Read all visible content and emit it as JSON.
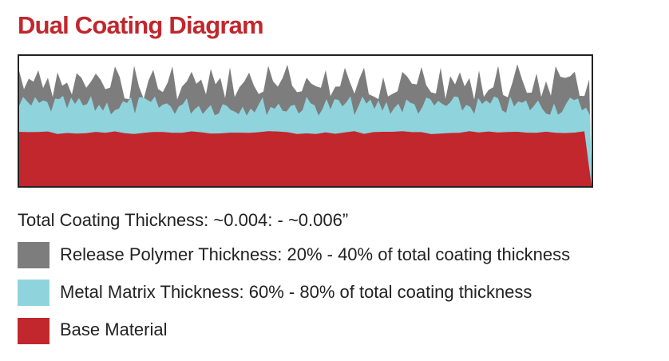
{
  "title": "Dual Coating Diagram",
  "caption": "Total Coating Thickness: ~0.004: - ~0.006”",
  "legend": {
    "items": [
      {
        "label": "Release Polymer Thickness: 20% - 40% of total coating thickness"
      },
      {
        "label": "Metal Matrix Thickness: 60% - 80% of total coating thickness"
      },
      {
        "label": "Base Material"
      }
    ]
  }
}
